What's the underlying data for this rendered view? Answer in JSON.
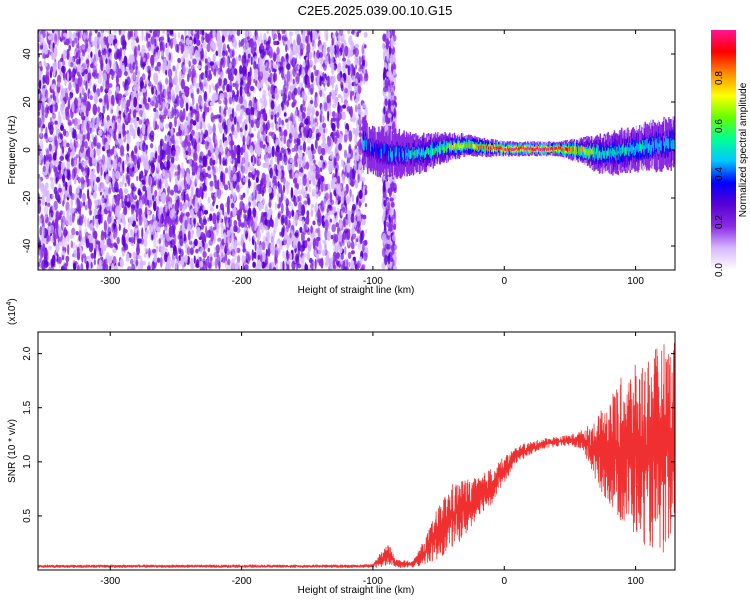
{
  "figure": {
    "title": "C2E5.2025.039.00.10.G15"
  },
  "chart_data": [
    {
      "type": "heatmap",
      "xlabel": "Height of straight line (km)",
      "ylabel": "Frequency (Hz)",
      "xlim": [
        -355,
        130
      ],
      "ylim": [
        -50,
        50
      ],
      "xticks": [
        -300,
        -200,
        -100,
        0,
        100
      ],
      "yticks": [
        -40,
        -20,
        0,
        20,
        40
      ],
      "colorbar": {
        "label": "Normalized spectral amplitude",
        "range": [
          0,
          1
        ],
        "ticks": [
          0.0,
          0.2,
          0.4,
          0.6,
          0.8
        ],
        "tick_labels": [
          "0.0",
          "0.2",
          "0.4",
          "0.6",
          "0.8"
        ],
        "colors": [
          "#ffffff",
          "#d7b8ff",
          "#8a2be2",
          "#5a00d6",
          "#0000ff",
          "#00c8ff",
          "#00ff96",
          "#66ff00",
          "#ffff00",
          "#ff8c00",
          "#ff0000",
          "#ff1493"
        ]
      },
      "noise_region": {
        "x_range": [
          -355,
          -105
        ],
        "amplitude": [
          0.1,
          0.3
        ]
      },
      "noise_strip": {
        "x_range": [
          -92,
          -83
        ],
        "amplitude": [
          0.1,
          0.3
        ]
      },
      "signal_band": [
        {
          "x": -105,
          "freq": 0.0,
          "width": 6,
          "amp": 0.35
        },
        {
          "x": -90,
          "freq": -1.0,
          "width": 7,
          "amp": 0.4
        },
        {
          "x": -75,
          "freq": -2.0,
          "width": 6,
          "amp": 0.45
        },
        {
          "x": -60,
          "freq": -1.0,
          "width": 5,
          "amp": 0.5
        },
        {
          "x": -45,
          "freq": 1.0,
          "width": 4,
          "amp": 0.6
        },
        {
          "x": -30,
          "freq": 2.0,
          "width": 3,
          "amp": 0.7
        },
        {
          "x": -15,
          "freq": 1.0,
          "width": 2.5,
          "amp": 0.85
        },
        {
          "x": 0,
          "freq": 0.5,
          "width": 2,
          "amp": 0.95
        },
        {
          "x": 20,
          "freq": 0.5,
          "width": 2,
          "amp": 1.0
        },
        {
          "x": 40,
          "freq": 0.5,
          "width": 2,
          "amp": 1.0
        },
        {
          "x": 55,
          "freq": 0.0,
          "width": 3,
          "amp": 0.8
        },
        {
          "x": 70,
          "freq": -1.5,
          "width": 5,
          "amp": 0.55
        },
        {
          "x": 85,
          "freq": -1.0,
          "width": 6,
          "amp": 0.5
        },
        {
          "x": 100,
          "freq": 0.5,
          "width": 6,
          "amp": 0.5
        },
        {
          "x": 115,
          "freq": 2.0,
          "width": 7,
          "amp": 0.45
        },
        {
          "x": 130,
          "freq": 3.0,
          "width": 7,
          "amp": 0.45
        }
      ]
    },
    {
      "type": "line",
      "xlabel": "Height of straight line (km)",
      "ylabel": "SNR (10 * v/v)",
      "y_multiplier_label": "(x10",
      "y_multiplier_exp": "4",
      "y_multiplier_close": ")",
      "xlim": [
        -355,
        130
      ],
      "ylim": [
        0,
        2.2
      ],
      "xticks": [
        -300,
        -200,
        -100,
        0,
        100
      ],
      "yticks": [
        0.5,
        1.0,
        1.5,
        2.0
      ],
      "ytick_labels": [
        "0.5",
        "1.0",
        "1.5",
        "2.0"
      ],
      "color": "#f03030",
      "series": [
        {
          "envelope": [
            {
              "x": -355,
              "lo": 0.02,
              "hi": 0.05
            },
            {
              "x": -110,
              "lo": 0.02,
              "hi": 0.05
            },
            {
              "x": -100,
              "lo": 0.02,
              "hi": 0.06
            },
            {
              "x": -95,
              "lo": 0.02,
              "hi": 0.15
            },
            {
              "x": -88,
              "lo": 0.05,
              "hi": 0.25
            },
            {
              "x": -82,
              "lo": 0.02,
              "hi": 0.1
            },
            {
              "x": -70,
              "lo": 0.02,
              "hi": 0.08
            },
            {
              "x": -60,
              "lo": 0.05,
              "hi": 0.3
            },
            {
              "x": -50,
              "lo": 0.1,
              "hi": 0.6
            },
            {
              "x": -40,
              "lo": 0.2,
              "hi": 0.8
            },
            {
              "x": -30,
              "lo": 0.3,
              "hi": 0.85
            },
            {
              "x": -20,
              "lo": 0.5,
              "hi": 0.85
            },
            {
              "x": -10,
              "lo": 0.6,
              "hi": 0.95
            },
            {
              "x": 0,
              "lo": 0.8,
              "hi": 1.05
            },
            {
              "x": 10,
              "lo": 1.0,
              "hi": 1.15
            },
            {
              "x": 30,
              "lo": 1.12,
              "hi": 1.22
            },
            {
              "x": 50,
              "lo": 1.15,
              "hi": 1.25
            },
            {
              "x": 60,
              "lo": 1.1,
              "hi": 1.3
            },
            {
              "x": 70,
              "lo": 0.8,
              "hi": 1.4
            },
            {
              "x": 80,
              "lo": 0.6,
              "hi": 1.6
            },
            {
              "x": 90,
              "lo": 0.4,
              "hi": 1.8
            },
            {
              "x": 100,
              "lo": 0.3,
              "hi": 1.9
            },
            {
              "x": 110,
              "lo": 0.2,
              "hi": 2.0
            },
            {
              "x": 120,
              "lo": 0.15,
              "hi": 2.1
            },
            {
              "x": 130,
              "lo": 0.1,
              "hi": 2.15
            }
          ]
        }
      ]
    }
  ]
}
